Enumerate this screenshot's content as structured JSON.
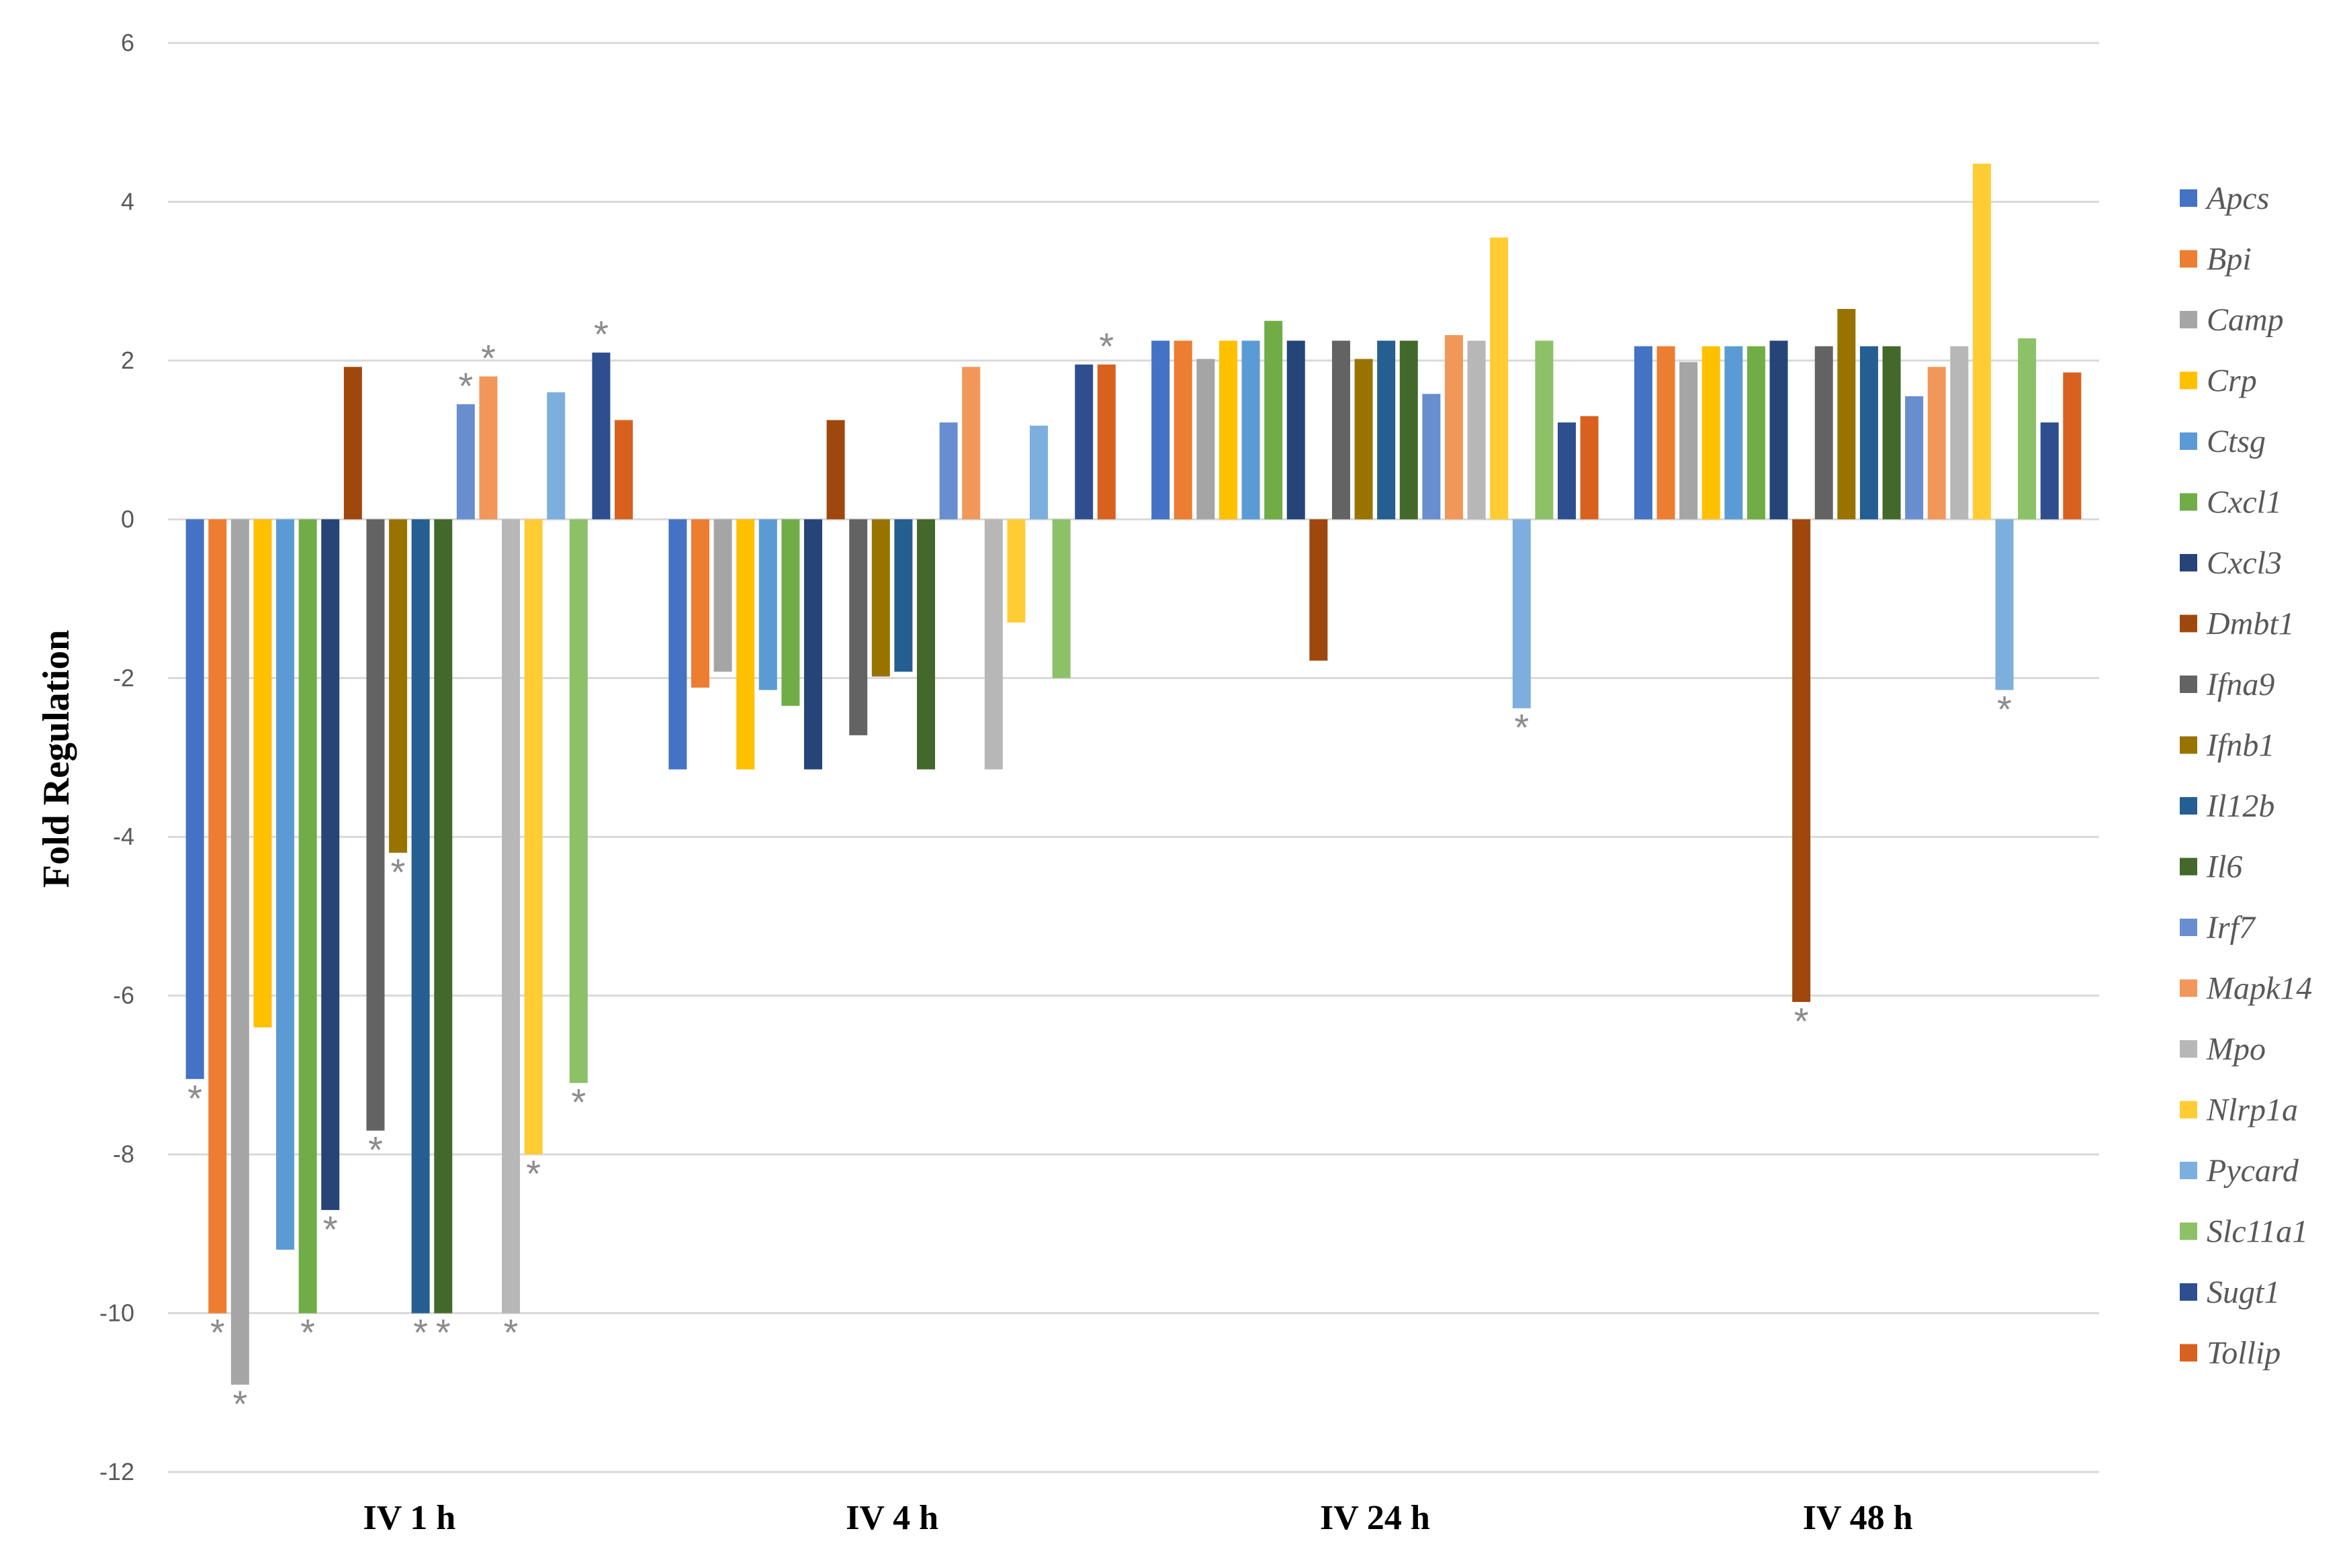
{
  "chart_data": {
    "type": "bar",
    "ylabel": "Fold Regulation",
    "ylim": [
      -12,
      6
    ],
    "yticks": [
      6,
      4,
      2,
      0,
      -2,
      -4,
      -6,
      -8,
      -10,
      -12
    ],
    "grid": true,
    "legend_position": "right",
    "categories": [
      "IV 1 h",
      "IV 4 h",
      "IV 24 h",
      "IV 48 h"
    ],
    "series": [
      {
        "name": "Apcs",
        "color": "#4472C4",
        "values": [
          -7.05,
          -3.15,
          2.25,
          2.18
        ],
        "significant": [
          true,
          false,
          false,
          false
        ]
      },
      {
        "name": "Bpi",
        "color": "#ED7D31",
        "values": [
          -10.0,
          -2.12,
          2.25,
          2.18
        ],
        "significant": [
          true,
          false,
          false,
          false
        ]
      },
      {
        "name": "Camp",
        "color": "#A5A5A5",
        "values": [
          -10.9,
          -1.92,
          2.02,
          1.98
        ],
        "significant": [
          true,
          false,
          false,
          false
        ]
      },
      {
        "name": "Crp",
        "color": "#FFC000",
        "values": [
          -6.4,
          -3.15,
          2.25,
          2.18
        ],
        "significant": [
          false,
          false,
          false,
          false
        ]
      },
      {
        "name": "Ctsg",
        "color": "#5B9BD5",
        "values": [
          -9.2,
          -2.15,
          2.25,
          2.18
        ],
        "significant": [
          false,
          false,
          false,
          false
        ]
      },
      {
        "name": "Cxcl1",
        "color": "#70AD47",
        "values": [
          -10.0,
          -2.35,
          2.5,
          2.18
        ],
        "significant": [
          true,
          false,
          false,
          false
        ]
      },
      {
        "name": "Cxcl3",
        "color": "#264478",
        "values": [
          -8.7,
          -3.15,
          2.25,
          2.25
        ],
        "significant": [
          true,
          false,
          false,
          false
        ]
      },
      {
        "name": "Dmbt1",
        "color": "#9E480E",
        "values": [
          1.92,
          1.25,
          -1.78,
          -6.08
        ],
        "significant": [
          false,
          false,
          false,
          true
        ]
      },
      {
        "name": "Ifna9",
        "color": "#636363",
        "values": [
          -7.7,
          -2.72,
          2.25,
          2.18
        ],
        "significant": [
          true,
          false,
          false,
          false
        ]
      },
      {
        "name": "Ifnb1",
        "color": "#997300",
        "values": [
          -4.2,
          -1.98,
          2.02,
          2.65
        ],
        "significant": [
          true,
          false,
          false,
          false
        ]
      },
      {
        "name": "Il12b",
        "color": "#255E91",
        "values": [
          -10.0,
          -1.92,
          2.25,
          2.18
        ],
        "significant": [
          true,
          false,
          false,
          false
        ]
      },
      {
        "name": "Il6",
        "color": "#43682B",
        "values": [
          -10.0,
          -3.15,
          2.25,
          2.18
        ],
        "significant": [
          true,
          false,
          false,
          false
        ]
      },
      {
        "name": "Irf7",
        "color": "#698ED0",
        "values": [
          1.45,
          1.22,
          1.58,
          1.55
        ],
        "significant": [
          true,
          false,
          false,
          false
        ]
      },
      {
        "name": "Mapk14",
        "color": "#F1975A",
        "values": [
          1.8,
          1.92,
          2.32,
          1.92
        ],
        "significant": [
          true,
          false,
          false,
          false
        ]
      },
      {
        "name": "Mpo",
        "color": "#B7B7B7",
        "values": [
          -10.0,
          -3.15,
          2.25,
          2.18
        ],
        "significant": [
          true,
          false,
          false,
          false
        ]
      },
      {
        "name": "Nlrp1a",
        "color": "#FFCD33",
        "values": [
          -8.0,
          -1.3,
          3.55,
          4.48
        ],
        "significant": [
          true,
          false,
          false,
          false
        ]
      },
      {
        "name": "Pycard",
        "color": "#7CAFDD",
        "values": [
          1.6,
          1.18,
          -2.38,
          -2.15
        ],
        "significant": [
          false,
          false,
          true,
          true
        ]
      },
      {
        "name": "Slc11a1",
        "color": "#8CC168",
        "values": [
          -7.1,
          -2.0,
          2.25,
          2.28
        ],
        "significant": [
          true,
          false,
          false,
          false
        ]
      },
      {
        "name": "Sugt1",
        "color": "#2E4E8F",
        "values": [
          2.1,
          1.95,
          1.22,
          1.22
        ],
        "significant": [
          true,
          false,
          false,
          false
        ]
      },
      {
        "name": "Tollip",
        "color": "#D8611F",
        "values": [
          1.25,
          1.95,
          1.3,
          1.85
        ],
        "significant": [
          false,
          true,
          false,
          false
        ]
      }
    ],
    "significance_marker": "*"
  }
}
